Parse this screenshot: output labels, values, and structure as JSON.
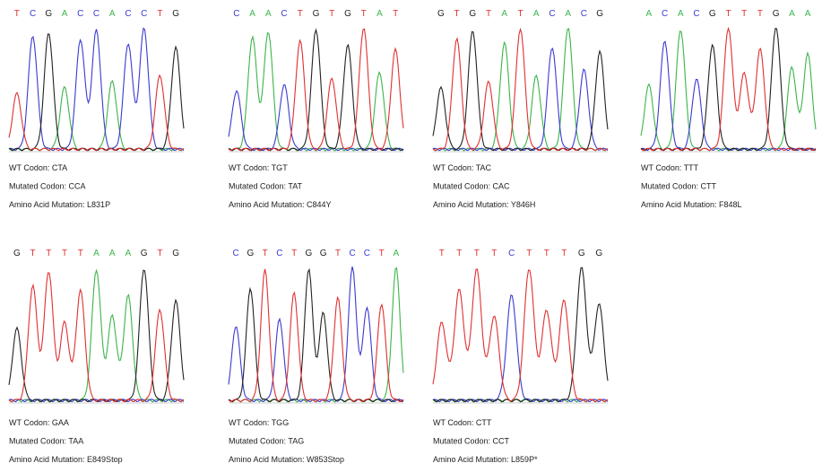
{
  "panels": [
    {
      "bases": [
        "T",
        "C",
        "G",
        "A",
        "C",
        "C",
        "A",
        "C",
        "C",
        "T",
        "G"
      ],
      "wt": "WT Codon: CTA",
      "mutated": "Mutated Codon: CCA",
      "mutation": "Amino Acid Mutation: L831P"
    },
    {
      "bases": [
        "C",
        "A",
        "A",
        "C",
        "T",
        "G",
        "T",
        "G",
        "T",
        "A",
        "T"
      ],
      "wt": "WT Codon: TGT",
      "mutated": "Mutated Codon: TAT",
      "mutation": "Amino Acid Mutation: C844Y"
    },
    {
      "bases": [
        "G",
        "T",
        "G",
        "T",
        "A",
        "T",
        "A",
        "C",
        "A",
        "C",
        "G"
      ],
      "wt": "WT Codon: TAC",
      "mutated": "Mutated Codon: CAC",
      "mutation": "Amino Acid Mutation: Y846H"
    },
    {
      "bases": [
        "A",
        "C",
        "A",
        "C",
        "G",
        "T",
        "T",
        "T",
        "G",
        "A",
        "A"
      ],
      "wt": "WT Codon: TTT",
      "mutated": "Mutated Codon: CTT",
      "mutation": "Amino Acid Mutation: F848L"
    },
    {
      "bases": [
        "G",
        "T",
        "T",
        "T",
        "T",
        "A",
        "A",
        "A",
        "G",
        "T",
        "G"
      ],
      "wt": "WT Codon: GAA",
      "mutated": "Mutated Codon: TAA",
      "mutation": "Amino Acid Mutation: E849Stop"
    },
    {
      "bases": [
        "C",
        "G",
        "T",
        "C",
        "T",
        "G",
        "G",
        "T",
        "C",
        "C",
        "T",
        "A"
      ],
      "wt": "WT Codon: TGG",
      "mutated": "Mutated Codon: TAG",
      "mutation": "Amino Acid Mutation: W853Stop"
    },
    {
      "bases": [
        "T",
        "T",
        "T",
        "T",
        "C",
        "T",
        "T",
        "T",
        "G",
        "G"
      ],
      "wt": "WT Codon: CTT",
      "mutated": "Mutated Codon: CCT",
      "mutation": "Amino Acid Mutation: L859P*"
    }
  ]
}
